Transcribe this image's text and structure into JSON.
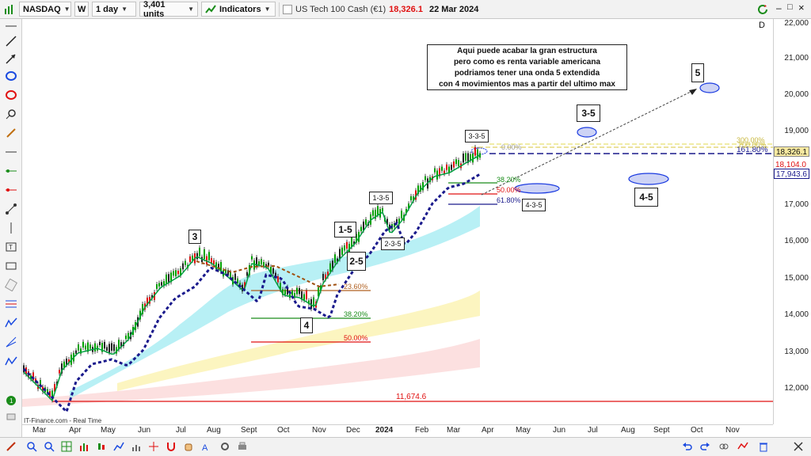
{
  "toolbar": {
    "symbol": "NASDAQ",
    "w_label": "W",
    "period": "1 day",
    "units": "3,401 units",
    "indicators_label": "Indicators",
    "instrument": "US Tech 100 Cash (€1)",
    "last_price": "18,326.1",
    "date": "22 Mar 2024"
  },
  "chart": {
    "d_label": "D",
    "source_label": "IT-Finance.com - Real Time",
    "note_lines": [
      "Aqui puede acabar la gran estructura",
      "pero como es renta variable americana",
      "podriamos tener una onda 5 extendida",
      "con 4 movimientos mas a partir del ultimo max"
    ],
    "wave_labels": [
      "3",
      "4",
      "1-5",
      "2-5",
      "3-5",
      "4-5",
      "5"
    ],
    "sub_wave_labels": [
      "1-3-5",
      "2-3-5",
      "3-3-5",
      "4-3-5"
    ],
    "fib_upper": [
      "0.00%",
      "38.20%",
      "50.00%",
      "61.80%",
      "161.80%",
      "200.00%",
      "300.00%"
    ],
    "fib_lower": [
      "23.60%",
      "38.20%",
      "50.00%"
    ],
    "support_label": "11,674.6"
  },
  "y_axis": {
    "labels": [
      "22,000",
      "21,000",
      "20,000",
      "19,000",
      "17,000",
      "16,000",
      "15,000",
      "14,000",
      "13,000",
      "12,000"
    ],
    "price_current": "18,326.1",
    "price_2": "18,104.0",
    "price_3": "17,943.6"
  },
  "x_axis": {
    "labels": [
      "Mar",
      "Apr",
      "May",
      "Jun",
      "Jul",
      "Aug",
      "Sept",
      "Oct",
      "Nov",
      "Dec",
      "2024",
      "Feb",
      "Mar",
      "Apr",
      "May",
      "Jun",
      "Jul",
      "Aug",
      "Sept",
      "Oct",
      "Nov"
    ]
  },
  "colors": {
    "accent_red": "#e01010",
    "bull": "#00a000",
    "bear": "#222222",
    "wave_blue": "#1a1a8c"
  }
}
